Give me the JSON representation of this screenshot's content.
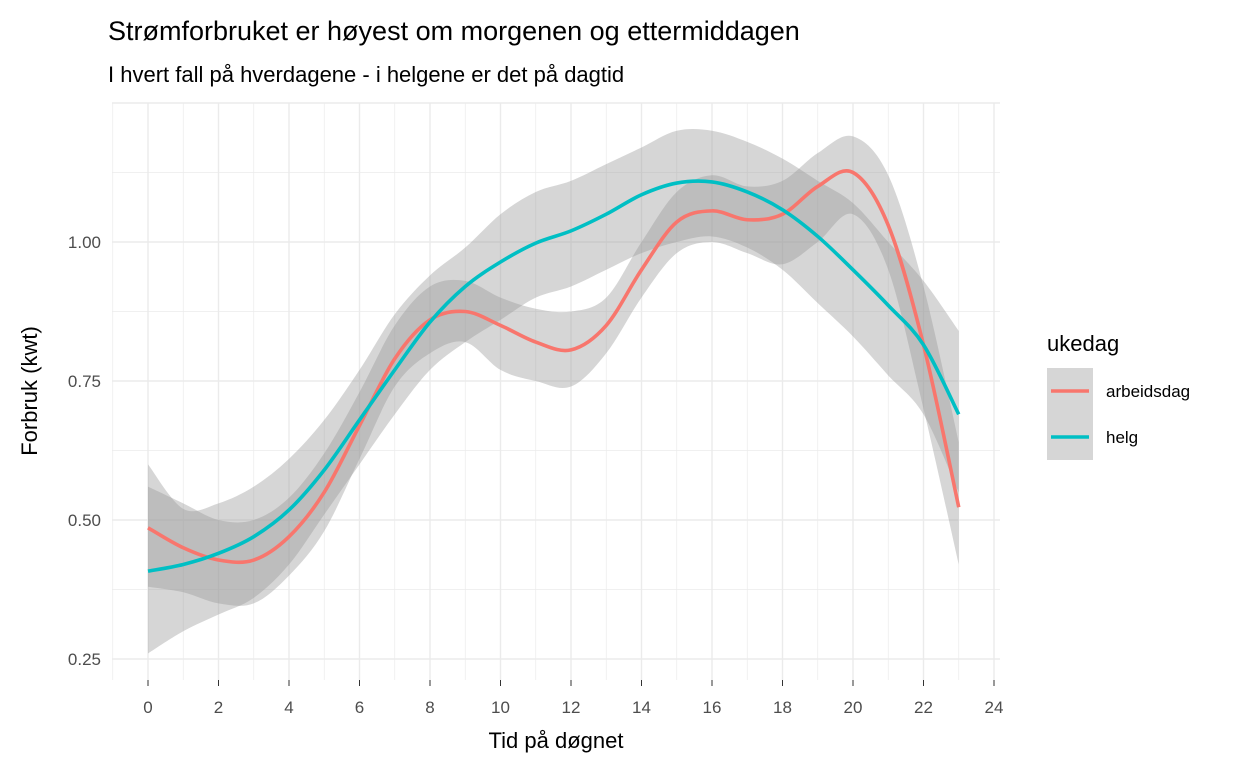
{
  "chart_data": {
    "type": "line",
    "title": "Strømforbruket er høyest om morgenen og ettermiddagen",
    "subtitle": "I hvert fall på hverdagene - i helgene er det på dagtid",
    "xlabel": "Tid på døgnet",
    "ylabel": "Forbruk (kwt)",
    "xlim": [
      -1,
      25
    ],
    "ylim": [
      0.21,
      1.25
    ],
    "x_ticks": [
      0,
      2,
      4,
      6,
      8,
      10,
      12,
      14,
      16,
      18,
      20,
      22,
      24
    ],
    "y_ticks": [
      0.25,
      0.5,
      0.75,
      1.0
    ],
    "y_tick_labels": [
      "0.25",
      "0.50",
      "0.75",
      "1.00"
    ],
    "grid": true,
    "legend": {
      "title": "ukedag",
      "position": "right"
    },
    "x": [
      0,
      1,
      2,
      3,
      4,
      5,
      6,
      7,
      8,
      9,
      10,
      11,
      12,
      13,
      14,
      15,
      16,
      17,
      18,
      19,
      20,
      21,
      22,
      23
    ],
    "series": [
      {
        "name": "arbeidsdag",
        "color": "#F8766D",
        "values": [
          0.486,
          0.45,
          0.428,
          0.428,
          0.47,
          0.55,
          0.67,
          0.79,
          0.86,
          0.875,
          0.85,
          0.82,
          0.806,
          0.85,
          0.95,
          1.036,
          1.056,
          1.04,
          1.05,
          1.1,
          1.125,
          1.03,
          0.815,
          0.523
        ],
        "lower": [
          0.38,
          0.37,
          0.35,
          0.35,
          0.4,
          0.48,
          0.61,
          0.74,
          0.8,
          0.82,
          0.77,
          0.75,
          0.74,
          0.8,
          0.9,
          0.98,
          1.0,
          0.98,
          0.96,
          1.0,
          1.05,
          0.95,
          0.7,
          0.42
        ],
        "upper": [
          0.56,
          0.53,
          0.5,
          0.5,
          0.54,
          0.62,
          0.73,
          0.85,
          0.92,
          0.93,
          0.9,
          0.88,
          0.875,
          0.9,
          1.0,
          1.09,
          1.12,
          1.1,
          1.11,
          1.16,
          1.19,
          1.12,
          0.92,
          0.64
        ]
      },
      {
        "name": "helg",
        "color": "#00BFC4",
        "values": [
          0.408,
          0.42,
          0.44,
          0.47,
          0.518,
          0.59,
          0.68,
          0.77,
          0.856,
          0.92,
          0.964,
          0.998,
          1.02,
          1.05,
          1.085,
          1.106,
          1.108,
          1.09,
          1.058,
          1.01,
          0.95,
          0.886,
          0.815,
          0.69
        ],
        "lower": [
          0.26,
          0.3,
          0.33,
          0.36,
          0.42,
          0.51,
          0.6,
          0.69,
          0.77,
          0.82,
          0.86,
          0.9,
          0.92,
          0.95,
          0.98,
          1.0,
          1.01,
          0.99,
          0.95,
          0.89,
          0.83,
          0.76,
          0.69,
          0.55
        ],
        "upper": [
          0.6,
          0.52,
          0.53,
          0.56,
          0.61,
          0.68,
          0.77,
          0.87,
          0.94,
          0.99,
          1.05,
          1.09,
          1.11,
          1.14,
          1.17,
          1.2,
          1.2,
          1.18,
          1.15,
          1.11,
          1.07,
          1.0,
          0.93,
          0.84
        ]
      }
    ]
  }
}
